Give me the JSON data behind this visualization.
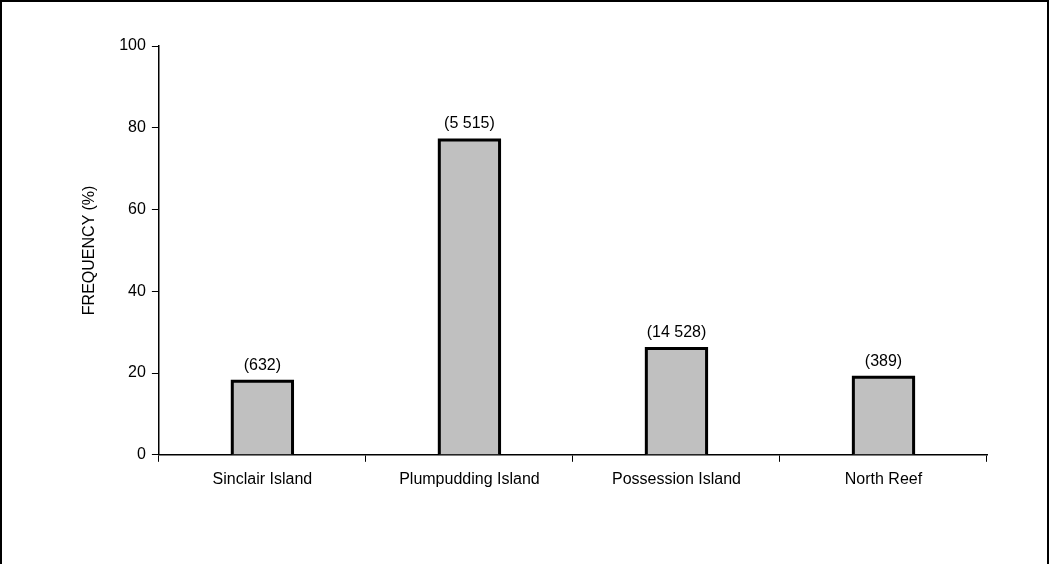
{
  "chart_data": {
    "type": "bar",
    "ylabel": "FREQUENCY (%)",
    "categories": [
      "Sinclair Island",
      "Plumpudding Island",
      "Possession Island",
      "North Reef"
    ],
    "values": [
      18,
      77,
      26,
      19
    ],
    "color": "#c0c0c0",
    "ylim": [
      0,
      100
    ],
    "yticks": [
      0,
      20,
      40,
      60,
      80,
      100
    ],
    "grid": false,
    "legend": false,
    "annotations": [
      {
        "text": "(632)",
        "x": "Sinclair Island",
        "y": 18
      },
      {
        "text": "(5 515)",
        "x": "Plumpudding Island",
        "y": 77
      },
      {
        "text": "(14 528)",
        "x": "Possession Island",
        "y": 26
      },
      {
        "text": "(389)",
        "x": "North Reef",
        "y": 19
      }
    ]
  }
}
